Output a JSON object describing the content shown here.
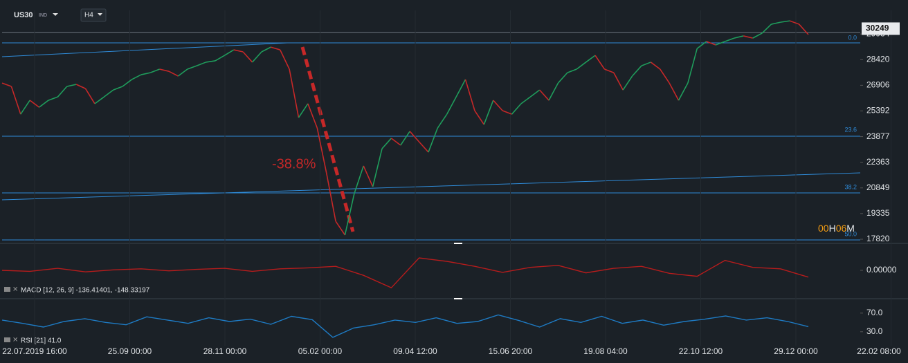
{
  "header": {
    "symbol": "US30",
    "market": "IND",
    "timeframe": "H4"
  },
  "chart_data": [
    {
      "type": "line",
      "series": [
        {
          "color": "#1f9d5c",
          "down_color": "#c62828",
          "values": [
            27040,
            26840,
            25200,
            26020,
            25610,
            26020,
            26220,
            26840,
            26960,
            26710,
            25820,
            26220,
            26630,
            26840,
            27250,
            27530,
            27650,
            27860,
            27730,
            27450,
            27860,
            28060,
            28270,
            28350,
            28670,
            29000,
            28880,
            28270,
            28880,
            29160,
            29000,
            27860,
            25000,
            25820,
            24390,
            21740,
            18880,
            18070,
            20510,
            22150,
            20920,
            23170,
            23780,
            23370,
            24190,
            23570,
            22960,
            24390,
            25200,
            26220,
            27250,
            25410,
            24590,
            26020,
            25410,
            25200,
            25820,
            26220,
            26630,
            26020,
            27040,
            27650,
            27860,
            28270,
            28670,
            27860,
            27650,
            26630,
            27450,
            28060,
            28270,
            27860,
            27040,
            26020,
            27040,
            29080,
            29490,
            29290,
            29490,
            29690,
            29820,
            29690,
            29980,
            30510,
            30630,
            30710,
            30510,
            29900
          ]
        }
      ],
      "ylim": [
        17657,
        31328
      ],
      "yticks": [
        17820,
        19335,
        20849,
        22363,
        23877,
        25392,
        26906,
        28420,
        29934
      ],
      "current_price": 30249,
      "x_labels": [
        "22.07.2019  16:00",
        "25.09  00:00",
        "28.11  00:00",
        "05.02  00:00",
        "09.04  12:00",
        "15.06  20:00",
        "19.08  04:00",
        "22.10  12:00",
        "29.12  00:00",
        "22.02  08:00"
      ],
      "fib_labels": [
        "0.0",
        "23.6",
        "38.2",
        "50.0"
      ],
      "annotation": "-38.8%",
      "countdown": {
        "hours": "00",
        "h": "H",
        "minutes": "06",
        "m": "M"
      }
    },
    {
      "type": "macd",
      "label": "MACD [12, 26, 9] -136.41401, -148.33197",
      "series": [
        {
          "color": "#b71c1c",
          "values": [
            0,
            -20,
            40,
            -30,
            10,
            30,
            -10,
            20,
            40,
            -20,
            30,
            50,
            80,
            -100,
            -350,
            250,
            180,
            80,
            -40,
            60,
            100,
            -50,
            40,
            80,
            -60,
            -120,
            200,
            60,
            30,
            -136
          ]
        }
      ],
      "ylim": [
        -500,
        500
      ],
      "yticks": [
        {
          "value": 0,
          "label": "0.00000"
        }
      ]
    },
    {
      "type": "rsi",
      "label": "RSI [21] 41.0",
      "series": [
        {
          "color": "#1e7bc4",
          "values": [
            55,
            48,
            40,
            52,
            58,
            50,
            45,
            62,
            55,
            48,
            60,
            52,
            57,
            46,
            63,
            56,
            18,
            38,
            45,
            55,
            50,
            60,
            48,
            52,
            66,
            54,
            40,
            58,
            50,
            63,
            48,
            55,
            44,
            52,
            57,
            64,
            55,
            60,
            52,
            41
          ]
        }
      ],
      "ylim": [
        0,
        92
      ],
      "yticks": [
        {
          "value": 70,
          "label": "70.0"
        },
        {
          "value": 30,
          "label": "30.0"
        }
      ]
    }
  ]
}
